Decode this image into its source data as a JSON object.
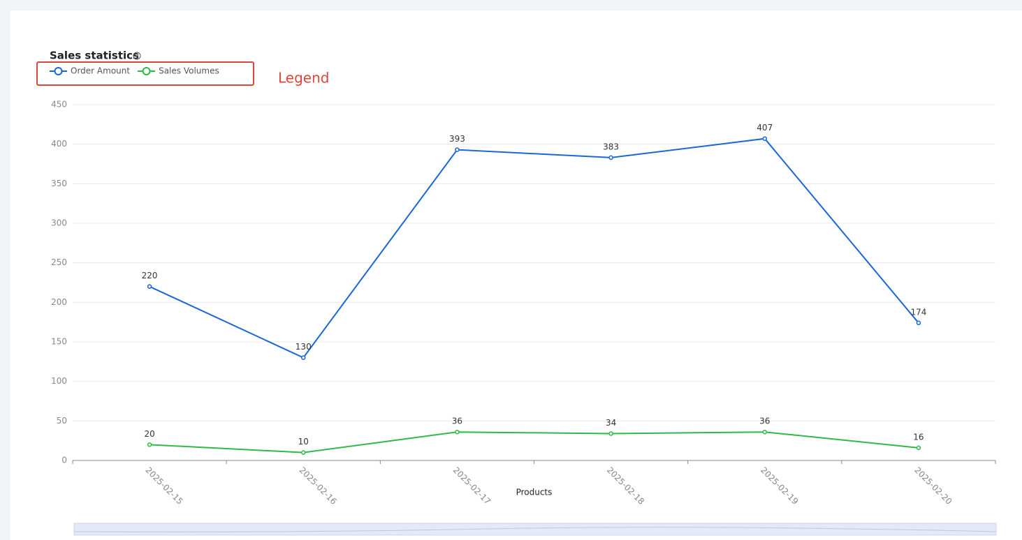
{
  "chart_data": {
    "type": "line",
    "title": "Sales statistics",
    "categories": [
      "2025-02-15",
      "2025-02-16",
      "2025-02-17",
      "2025-02-18",
      "2025-02-19",
      "2025-02-20"
    ],
    "series": [
      {
        "name": "Order Amount",
        "color": "#1a66d6",
        "values": [
          220,
          130,
          393,
          383,
          407,
          174
        ]
      },
      {
        "name": "Sales Volumes",
        "color": "#2fba47",
        "values": [
          20,
          10,
          36,
          34,
          36,
          16
        ]
      }
    ],
    "ylim": [
      0,
      450
    ],
    "yticks": [
      0,
      50,
      100,
      150,
      200,
      250,
      300,
      350,
      400,
      450
    ],
    "xlabel": "Products",
    "grid": true
  },
  "annotation": "Legend"
}
